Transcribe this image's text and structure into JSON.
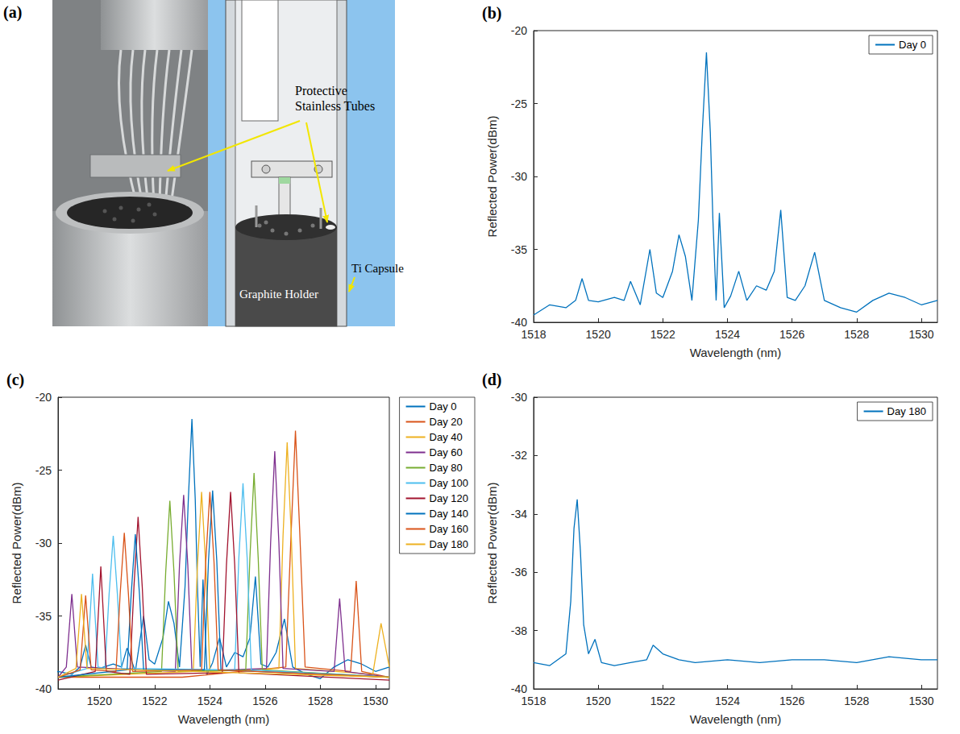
{
  "figure": {
    "panel_a": {
      "label": "(a)",
      "annotations": {
        "tubes": "Protective Stainless Tubes",
        "holder": "Graphite Holder",
        "capsule": "Ti Capsule"
      }
    }
  },
  "chart_data": [
    {
      "label": "(b)",
      "type": "line",
      "xlabel": "Wavelength (nm)",
      "ylabel": "Reflected Power(dBm)",
      "xlim": [
        1518,
        1530.5
      ],
      "xticks": [
        1518,
        1520,
        1522,
        1524,
        1526,
        1528,
        1530
      ],
      "ylim": [
        -40,
        -20
      ],
      "yticks": [
        -40,
        -35,
        -30,
        -25,
        -20
      ],
      "grid": false,
      "legend": "upper right",
      "series": [
        {
          "name": "Day 0",
          "color": "#0072BD",
          "x": [
            1518,
            1518.5,
            1519,
            1519.3,
            1519.5,
            1519.7,
            1520,
            1520.5,
            1520.8,
            1521,
            1521.3,
            1521.6,
            1521.8,
            1522,
            1522.3,
            1522.5,
            1522.7,
            1522.9,
            1523.1,
            1523.22,
            1523.35,
            1523.47,
            1523.55,
            1523.65,
            1523.75,
            1523.9,
            1524.1,
            1524.35,
            1524.6,
            1524.9,
            1525.2,
            1525.45,
            1525.65,
            1525.85,
            1526.1,
            1526.4,
            1526.7,
            1527,
            1527.5,
            1528,
            1528.5,
            1529,
            1529.5,
            1530,
            1530.5
          ],
          "values": [
            -39.5,
            -38.8,
            -39,
            -38.5,
            -37,
            -38.5,
            -38.6,
            -38.3,
            -38.5,
            -37.2,
            -38.8,
            -35,
            -38,
            -38.3,
            -36.5,
            -34,
            -35.5,
            -38.5,
            -33,
            -27,
            -21.5,
            -27,
            -33,
            -38.5,
            -32.5,
            -39,
            -38.2,
            -36.5,
            -38.5,
            -37.5,
            -37.8,
            -36.5,
            -32.3,
            -38.3,
            -38.5,
            -37.5,
            -35.2,
            -38.5,
            -39,
            -39.3,
            -38.5,
            -38,
            -38.3,
            -38.8,
            -38.5
          ]
        }
      ]
    },
    {
      "label": "(c)",
      "type": "line",
      "xlabel": "Wavelength (nm)",
      "ylabel": "Reflected Power(dBm)",
      "xlim": [
        1518.5,
        1530.5
      ],
      "xticks": [
        1520,
        1522,
        1524,
        1526,
        1528,
        1530
      ],
      "ylim": [
        -40,
        -20
      ],
      "yticks": [
        -40,
        -35,
        -30,
        -25,
        -20
      ],
      "grid": false,
      "legend": "right",
      "series": [
        {
          "name": "Day 0",
          "color": "#0072BD",
          "x": [
            1518,
            1518.5,
            1519,
            1519.3,
            1519.5,
            1519.7,
            1520,
            1520.5,
            1520.8,
            1521,
            1521.3,
            1521.6,
            1521.8,
            1522,
            1522.3,
            1522.5,
            1522.7,
            1522.9,
            1523.1,
            1523.22,
            1523.35,
            1523.47,
            1523.55,
            1523.65,
            1523.75,
            1523.9,
            1524.1,
            1524.35,
            1524.6,
            1524.9,
            1525.2,
            1525.45,
            1525.65,
            1525.85,
            1526.1,
            1526.4,
            1526.7,
            1527,
            1527.5,
            1528,
            1528.5,
            1529,
            1529.5,
            1530,
            1530.5
          ],
          "values": [
            -39.5,
            -38.8,
            -39,
            -38.5,
            -37,
            -38.5,
            -38.6,
            -38.3,
            -38.5,
            -37.2,
            -38.8,
            -35,
            -38,
            -38.3,
            -36.5,
            -34,
            -35.5,
            -38.5,
            -33,
            -27,
            -21.5,
            -27,
            -33,
            -38.5,
            -32.5,
            -39,
            -38.2,
            -36.5,
            -38.5,
            -37.5,
            -37.8,
            -36.5,
            -32.3,
            -38.3,
            -38.5,
            -37.5,
            -35.2,
            -38.5,
            -39,
            -39.3,
            -38.5,
            -38,
            -38.3,
            -38.8,
            -38.5
          ]
        },
        {
          "name": "Day 20",
          "color": "#D95319",
          "x": [
            1518.5,
            1523,
            1526.75,
            1526.95,
            1527.1,
            1527.25,
            1527.45,
            1529.1,
            1529.3,
            1529.5,
            1530.5
          ],
          "values": [
            -39.2,
            -39.2,
            -38.5,
            -29,
            -22.3,
            -29,
            -38.5,
            -38.8,
            -32.6,
            -38.8,
            -39.2
          ]
        },
        {
          "name": "Day 40",
          "color": "#EDB120",
          "x": [
            1518.5,
            1523.4,
            1523.55,
            1523.7,
            1523.85,
            1524,
            1526.5,
            1526.65,
            1526.8,
            1526.95,
            1527.1,
            1529.9,
            1530.2,
            1530.5
          ],
          "values": [
            -39.2,
            -38.8,
            -31.5,
            -26.5,
            -31.5,
            -38.8,
            -38.6,
            -29.5,
            -23.1,
            -29.5,
            -38.6,
            -39,
            -35.5,
            -38.5
          ]
        },
        {
          "name": "Day 60",
          "color": "#7E2F8E",
          "x": [
            1518.5,
            1518.8,
            1519,
            1519.2,
            1522.75,
            1522.9,
            1523.05,
            1523.2,
            1523.35,
            1526.05,
            1526.2,
            1526.35,
            1526.5,
            1526.65,
            1528.5,
            1528.7,
            1528.9,
            1530.5
          ],
          "values": [
            -39.2,
            -38.5,
            -33.5,
            -38.5,
            -38.8,
            -31.5,
            -26.7,
            -31.5,
            -38.8,
            -38.6,
            -30,
            -23.7,
            -30,
            -38.6,
            -38.8,
            -33.8,
            -38.8,
            -39.2
          ]
        },
        {
          "name": "Day 80",
          "color": "#77AC30",
          "x": [
            1518.5,
            1522.25,
            1522.4,
            1522.55,
            1522.7,
            1522.85,
            1525.3,
            1525.45,
            1525.6,
            1525.75,
            1525.9,
            1530.5
          ],
          "values": [
            -39.2,
            -38.8,
            -32,
            -27.1,
            -32,
            -38.8,
            -38.7,
            -31,
            -25.2,
            -31,
            -38.7,
            -39.2
          ]
        },
        {
          "name": "Day 100",
          "color": "#4DBEEE",
          "x": [
            1518.5,
            1519.55,
            1519.75,
            1519.95,
            1520.2,
            1520.35,
            1520.5,
            1520.65,
            1520.8,
            1524.9,
            1525.05,
            1525.2,
            1525.35,
            1525.5,
            1530.5
          ],
          "values": [
            -39.2,
            -38.6,
            -32.1,
            -38.5,
            -38.6,
            -33.5,
            -29.5,
            -33.5,
            -38.6,
            -38.7,
            -31,
            -25.9,
            -31,
            -38.7,
            -39.2
          ]
        },
        {
          "name": "Day 120",
          "color": "#A2142F",
          "x": [
            1518.5,
            1519.85,
            1520.05,
            1520.25,
            1521.1,
            1521.25,
            1521.4,
            1521.55,
            1521.7,
            1524.45,
            1524.6,
            1524.75,
            1524.9,
            1525.05,
            1530.5
          ],
          "values": [
            -39.4,
            -38.8,
            -31.6,
            -38.8,
            -39,
            -33,
            -28.2,
            -33,
            -39,
            -38.9,
            -31.5,
            -26.5,
            -31.5,
            -38.9,
            -39.4
          ]
        },
        {
          "name": "Day 140",
          "color": "#0072BD",
          "x": [
            1518.5,
            1521,
            1521.15,
            1521.3,
            1521.45,
            1521.6,
            1523.8,
            1523.95,
            1524.1,
            1524.25,
            1524.4,
            1530.5
          ],
          "values": [
            -39.2,
            -38.7,
            -33.5,
            -29.4,
            -33.5,
            -38.7,
            -38.7,
            -31.2,
            -26.4,
            -31.2,
            -38.7,
            -39.2
          ]
        },
        {
          "name": "Day 160",
          "color": "#D95319",
          "x": [
            1518.5,
            1519.3,
            1519.5,
            1519.7,
            1520.6,
            1520.75,
            1520.9,
            1521.05,
            1521.2,
            1523.7,
            1523.85,
            1524,
            1524.15,
            1524.3,
            1530.5
          ],
          "values": [
            -39.2,
            -38.7,
            -33.6,
            -38.7,
            -38.8,
            -33.5,
            -29.3,
            -33.5,
            -38.8,
            -38.7,
            -31.3,
            -26.5,
            -31.3,
            -38.7,
            -39.2
          ]
        },
        {
          "name": "Day 180",
          "color": "#EDB120",
          "x": [
            1518.5,
            1519.15,
            1519.35,
            1519.55,
            1530.5
          ],
          "values": [
            -39.2,
            -38.6,
            -33.5,
            -38.6,
            -39.2
          ]
        }
      ]
    },
    {
      "label": "(d)",
      "type": "line",
      "xlabel": "Wavelength (nm)",
      "ylabel": "Reflected Power(dBm)",
      "xlim": [
        1518,
        1530.5
      ],
      "xticks": [
        1518,
        1520,
        1522,
        1524,
        1526,
        1528,
        1530
      ],
      "ylim": [
        -40,
        -30
      ],
      "yticks": [
        -40,
        -38,
        -36,
        -34,
        -32,
        -30
      ],
      "grid": false,
      "legend": "upper right",
      "series": [
        {
          "name": "Day 180",
          "color": "#0072BD",
          "x": [
            1518,
            1518.5,
            1519,
            1519.15,
            1519.25,
            1519.35,
            1519.45,
            1519.55,
            1519.7,
            1519.9,
            1520.1,
            1520.5,
            1521,
            1521.5,
            1521.7,
            1522,
            1522.5,
            1523,
            1524,
            1525,
            1526,
            1527,
            1528,
            1529,
            1530,
            1530.5
          ],
          "values": [
            -39.1,
            -39.2,
            -38.8,
            -37,
            -34.5,
            -33.5,
            -35.3,
            -37.8,
            -38.8,
            -38.3,
            -39.1,
            -39.2,
            -39.1,
            -39,
            -38.5,
            -38.8,
            -39,
            -39.1,
            -39,
            -39.1,
            -39,
            -39,
            -39.1,
            -38.9,
            -39,
            -39
          ]
        }
      ]
    }
  ]
}
